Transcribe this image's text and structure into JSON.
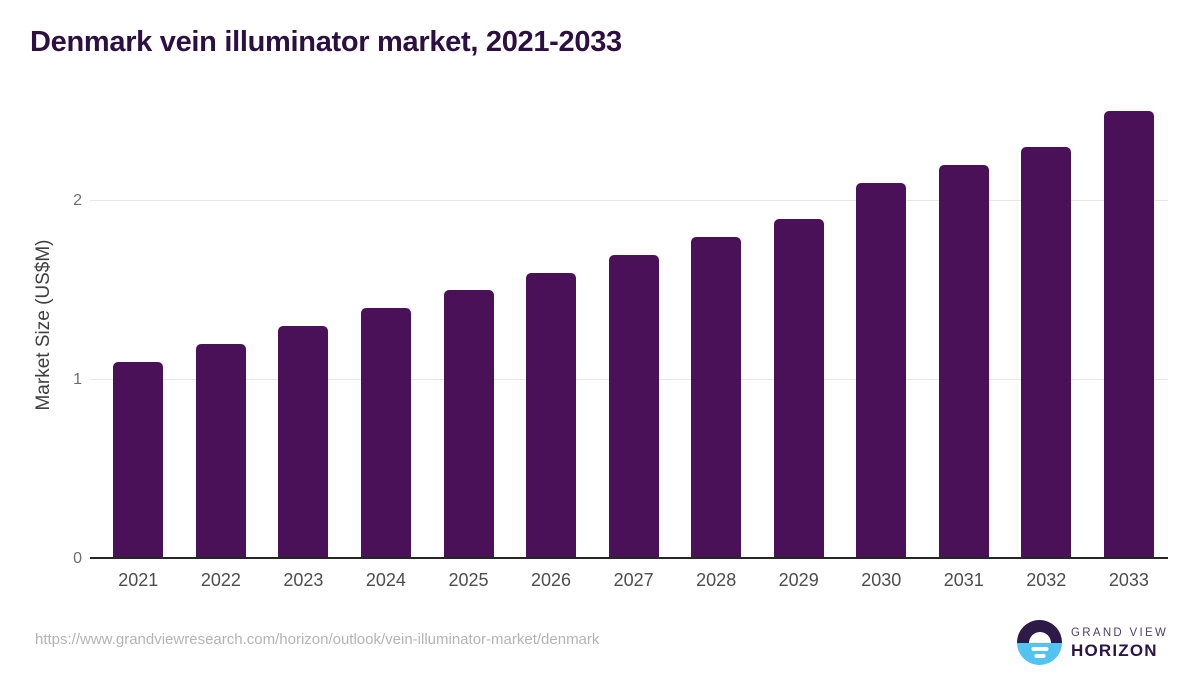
{
  "title": "Denmark vein illuminator market, 2021-2033",
  "footer": {
    "source_url": "https://www.grandviewresearch.com/horizon/outlook/vein-illuminator-market/denmark",
    "logo": {
      "line1": "GRAND VIEW",
      "line2": "HORIZON"
    }
  },
  "colors": {
    "bar": "#4a1058",
    "title_text": "#2c1042",
    "axis_line": "#262626",
    "grid_line": "#e7e7e7",
    "ytick_text": "#6e6e6e",
    "xtick_text": "#4d4d4d",
    "url_text": "#b4b4b4",
    "logo_purple": "#2d1a47",
    "logo_blue": "#53c4f1"
  },
  "chart_data": {
    "type": "bar",
    "title": "Denmark vein illuminator market, 2021-2033",
    "categories": [
      "2021",
      "2022",
      "2023",
      "2024",
      "2025",
      "2026",
      "2027",
      "2028",
      "2029",
      "2030",
      "2031",
      "2032",
      "2033"
    ],
    "values": [
      1.1,
      1.2,
      1.3,
      1.4,
      1.5,
      1.6,
      1.7,
      1.8,
      1.9,
      2.1,
      2.2,
      2.3,
      2.5
    ],
    "xlabel": "",
    "ylabel": "Market Size (US$M)",
    "ylim": [
      0,
      2.6
    ],
    "yticks": [
      0,
      1,
      2
    ],
    "grid": "horizontal",
    "legend": "none",
    "bar_color": "#4a1058"
  }
}
